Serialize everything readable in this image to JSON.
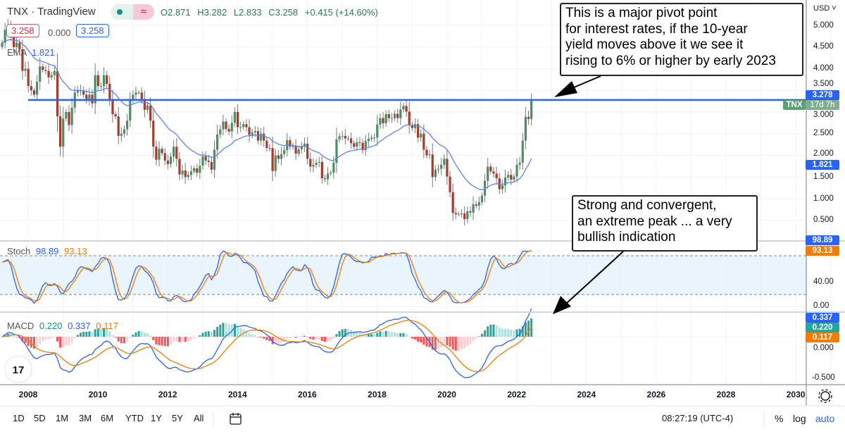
{
  "header": {
    "symbol": "TNX",
    "separator": "·",
    "source": "TradingView",
    "open": "O2.871",
    "high": "H3.282",
    "low": "L2.833",
    "close": "C3.258",
    "change": "+0.415 (+14.60%)",
    "bid": "3.258",
    "spread": "0.000",
    "ask": "3.258"
  },
  "indicators": {
    "ema": {
      "label": "EMA",
      "value": "1.821"
    },
    "stoch": {
      "label": "Stoch",
      "k": "98.89",
      "d": "93.13"
    },
    "macd": {
      "label": "MACD",
      "hist": "0.220",
      "macd": "0.337",
      "signal": "0.117"
    }
  },
  "price_axis": {
    "currency": "USD ˅",
    "ticks": [
      "5.000",
      "4.500",
      "4.000",
      "3.500",
      "3.000",
      "2.500",
      "2.000",
      "1.500",
      "1.000",
      "0.500"
    ],
    "tags": {
      "line": "3.278",
      "symbol": "TNX",
      "countdown": "17d 7h",
      "ema": "1.821"
    }
  },
  "stoch_axis": {
    "ticks": [
      "40.00",
      "0.00"
    ],
    "tags": {
      "k": "98.89",
      "d": "93.13"
    }
  },
  "macd_axis": {
    "ticks": [
      "0.000",
      "-0.500"
    ],
    "tags": {
      "macd": "0.337",
      "hist": "0.220",
      "signal": "0.117"
    }
  },
  "time_axis": {
    "ticks": [
      "2008",
      "2010",
      "2012",
      "2014",
      "2016",
      "2018",
      "2020",
      "2022",
      "2024",
      "2026",
      "2028",
      "2030"
    ]
  },
  "annotations": [
    {
      "lines": [
        "This is a major pivot point",
        "for interest rates, if the 10-year",
        "yield moves above it we see it",
        "rising to 6% or higher by early 2023"
      ]
    },
    {
      "lines": [
        "Strong and convergent,",
        "an extreme peak ... a very",
        "bullish indication"
      ]
    }
  ],
  "toolbar": {
    "ranges": [
      "1D",
      "5D",
      "1M",
      "3M",
      "6M",
      "YTD",
      "1Y",
      "5Y",
      "All"
    ],
    "time": "08:27:19 (UTC-4)",
    "percent": "%",
    "log": "log",
    "auto": "auto"
  },
  "colors": {
    "up": "#4a8f62",
    "down": "#a83a2c",
    "ema": "#2962ff",
    "hline": "#2962ff",
    "stoch_k": "#2962ff",
    "stoch_d": "#f57c00",
    "macd": "#2962ff",
    "signal": "#f57c00",
    "hist_up": "#089981",
    "hist_down": "#f23645"
  },
  "chart_data": {
    "type": "candlestick",
    "interval": "monthly",
    "start": "2007-04",
    "horizontal_line": 3.278,
    "ylim": [
      0.3,
      5.3
    ],
    "xlim": [
      "2007",
      "2031"
    ],
    "close": [
      4.6,
      4.9,
      5.0,
      4.75,
      4.5,
      4.6,
      4.45,
      3.95,
      4.0,
      3.6,
      3.5,
      3.4,
      3.7,
      4.05,
      3.97,
      3.95,
      3.8,
      3.85,
      3.95,
      2.9,
      2.2,
      2.85,
      3.0,
      2.7,
      3.1,
      3.45,
      3.5,
      3.5,
      3.4,
      3.3,
      3.4,
      3.2,
      3.85,
      3.6,
      3.6,
      3.85,
      3.65,
      3.3,
      2.95,
      2.9,
      2.45,
      2.5,
      2.6,
      2.8,
      3.3,
      3.4,
      3.45,
      3.45,
      3.3,
      3.05,
      3.15,
      2.8,
      2.2,
      1.9,
      2.15,
      2.05,
      1.88,
      1.8,
      1.97,
      2.2,
      1.92,
      1.56,
      1.65,
      1.5,
      1.55,
      1.63,
      1.7,
      1.6,
      1.76,
      1.98,
      1.88,
      1.85,
      1.67,
      2.13,
      2.48,
      2.6,
      2.78,
      2.61,
      2.55,
      2.75,
      3.0,
      2.65,
      2.65,
      2.72,
      2.65,
      2.47,
      2.53,
      2.56,
      2.34,
      2.5,
      2.34,
      2.17,
      2.17,
      1.64,
      2.0,
      1.92,
      2.03,
      2.12,
      2.35,
      2.2,
      2.21,
      2.04,
      2.14,
      2.21,
      2.27,
      1.92,
      1.74,
      1.78,
      1.83,
      1.85,
      1.47,
      1.45,
      1.58,
      1.6,
      1.83,
      2.37,
      2.44,
      2.45,
      2.39,
      2.39,
      2.28,
      2.2,
      2.3,
      2.29,
      2.12,
      2.33,
      2.38,
      2.41,
      2.41,
      2.71,
      2.86,
      2.74,
      2.95,
      2.86,
      2.86,
      2.96,
      2.86,
      3.06,
      3.14,
      3.01,
      2.69,
      2.63,
      2.72,
      2.41,
      2.5,
      2.13,
      2.0,
      2.02,
      1.5,
      1.67,
      1.69,
      1.78,
      1.92,
      1.51,
      1.15,
      0.67,
      0.64,
      0.65,
      0.66,
      0.53,
      0.71,
      0.68,
      0.87,
      0.84,
      0.92,
      1.07,
      1.41,
      1.74,
      1.63,
      1.58,
      1.47,
      1.22,
      1.31,
      1.49,
      1.55,
      1.44,
      1.51,
      1.78,
      1.83,
      2.34,
      2.89,
      2.84,
      3.258
    ],
    "stoch_levels": [
      80,
      20
    ],
    "macd_ylim": [
      -0.55,
      0.5
    ]
  }
}
